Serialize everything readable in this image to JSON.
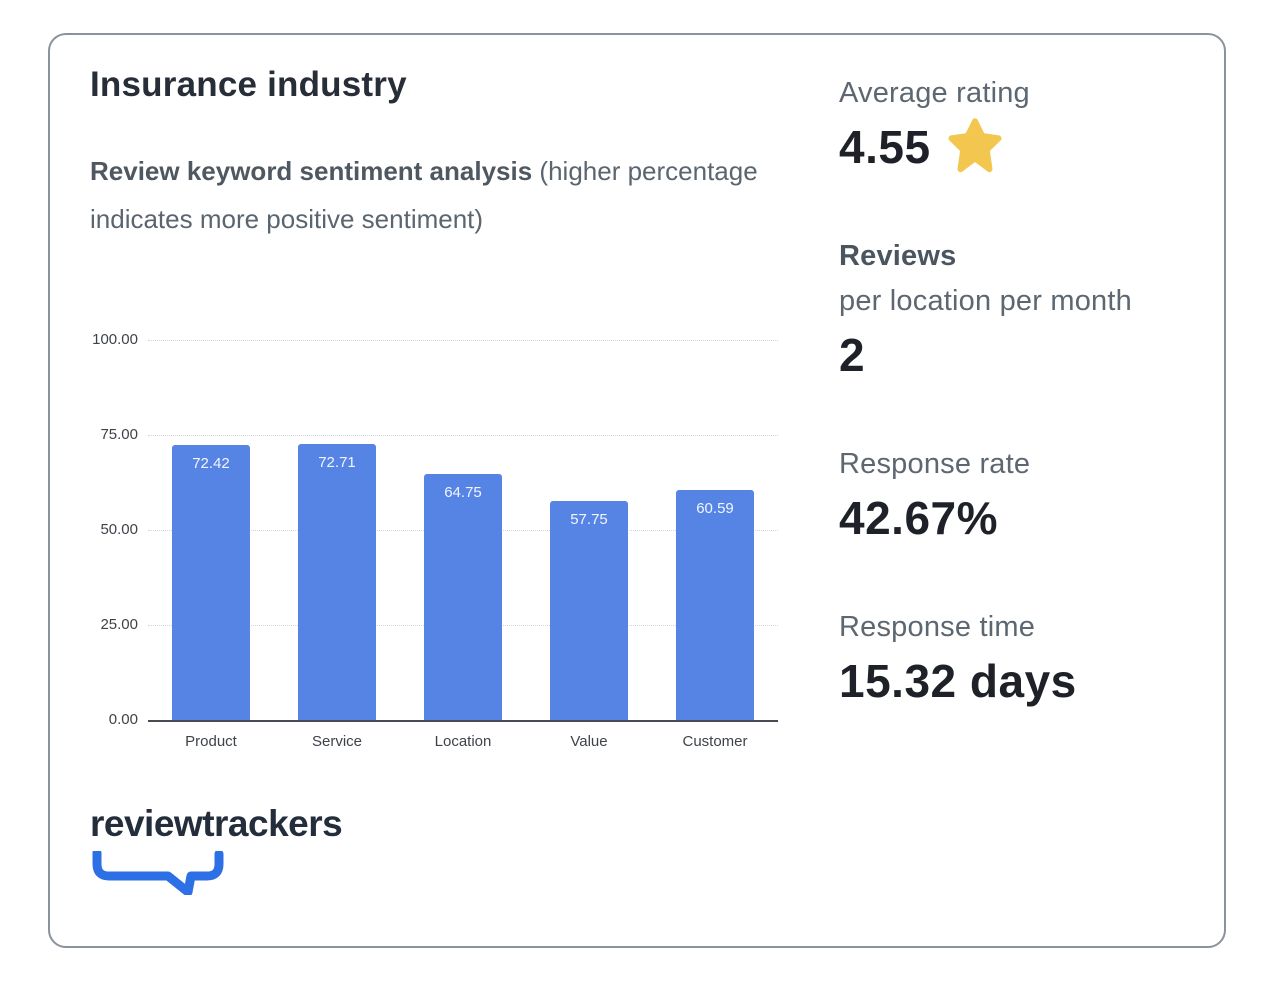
{
  "card": {
    "title": "Insurance industry",
    "subtitle_bold": "Review keyword sentiment analysis",
    "subtitle_rest": " (higher percentage indicates more positive sentiment)"
  },
  "chart_data": {
    "type": "bar",
    "title": "Review keyword sentiment analysis",
    "categories": [
      "Product",
      "Service",
      "Location",
      "Value",
      "Customer"
    ],
    "values": [
      72.42,
      72.71,
      64.75,
      57.75,
      60.59
    ],
    "xlabel": "",
    "ylabel": "",
    "ylim": [
      0,
      100
    ],
    "yticks": [
      0,
      25,
      50,
      75,
      100
    ],
    "ytick_decimals": 2,
    "grid": true,
    "legend": "none",
    "bar_color": "#5584e4",
    "bar_label_color": "#f2f5fd"
  },
  "stats": {
    "average_rating": {
      "label": "Average rating",
      "value": "4.55",
      "icon": "star"
    },
    "reviews": {
      "label": "Reviews",
      "sublabel": "per location per month",
      "value": "2"
    },
    "response_rate": {
      "label": "Response rate",
      "value": "42.67%"
    },
    "response_time": {
      "label": "Response time",
      "value": "15.32 days"
    }
  },
  "brand": {
    "logo_text": "reviewtrackers"
  },
  "colors": {
    "accent_blue": "#5584e4",
    "logo_blue": "#2d6fe4",
    "star_yellow": "#f3c74f",
    "dark_navy": "#272e38",
    "text_gray": "#5b6570",
    "card_border": "#8b929b"
  }
}
